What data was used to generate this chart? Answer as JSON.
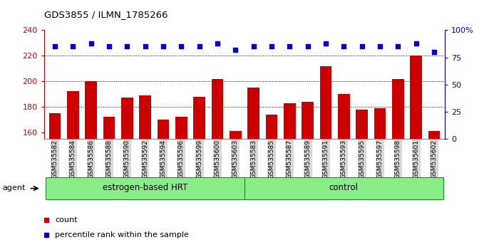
{
  "title": "GDS3855 / ILMN_1785266",
  "categories": [
    "GSM535582",
    "GSM535584",
    "GSM535586",
    "GSM535588",
    "GSM535590",
    "GSM535592",
    "GSM535594",
    "GSM535596",
    "GSM535599",
    "GSM535600",
    "GSM535603",
    "GSM535583",
    "GSM535585",
    "GSM535587",
    "GSM535589",
    "GSM535591",
    "GSM535593",
    "GSM535595",
    "GSM535597",
    "GSM535598",
    "GSM535601",
    "GSM535602"
  ],
  "bar_values": [
    175,
    192,
    200,
    172,
    187,
    189,
    170,
    172,
    188,
    202,
    161,
    195,
    174,
    183,
    184,
    212,
    190,
    178,
    179,
    202,
    220,
    161
  ],
  "percentile_values": [
    85,
    85,
    88,
    85,
    85,
    85,
    85,
    85,
    85,
    88,
    82,
    85,
    85,
    85,
    85,
    88,
    85,
    85,
    85,
    85,
    88,
    80
  ],
  "group1_label": "estrogen-based HRT",
  "group1_count": 11,
  "group2_label": "control",
  "group2_count": 11,
  "agent_label": "agent",
  "bar_color": "#cc0000",
  "percentile_color": "#0000cc",
  "group_color": "#88ee88",
  "group_border_color": "#228822",
  "ylim_left": [
    155,
    240
  ],
  "ylim_right": [
    0,
    100
  ],
  "yticks_left": [
    160,
    180,
    200,
    220,
    240
  ],
  "yticks_right": [
    0,
    25,
    50,
    75,
    100
  ],
  "ytick_labels_right": [
    "0",
    "25",
    "50",
    "75",
    "100%"
  ],
  "grid_values": [
    180,
    200,
    220
  ],
  "legend_items": [
    "count",
    "percentile rank within the sample"
  ],
  "legend_colors": [
    "#cc0000",
    "#0000cc"
  ],
  "bg_color": "#ffffff",
  "bar_width": 0.65,
  "tick_label_size": 6.5,
  "tick_bg_color": "#d8d8d8"
}
